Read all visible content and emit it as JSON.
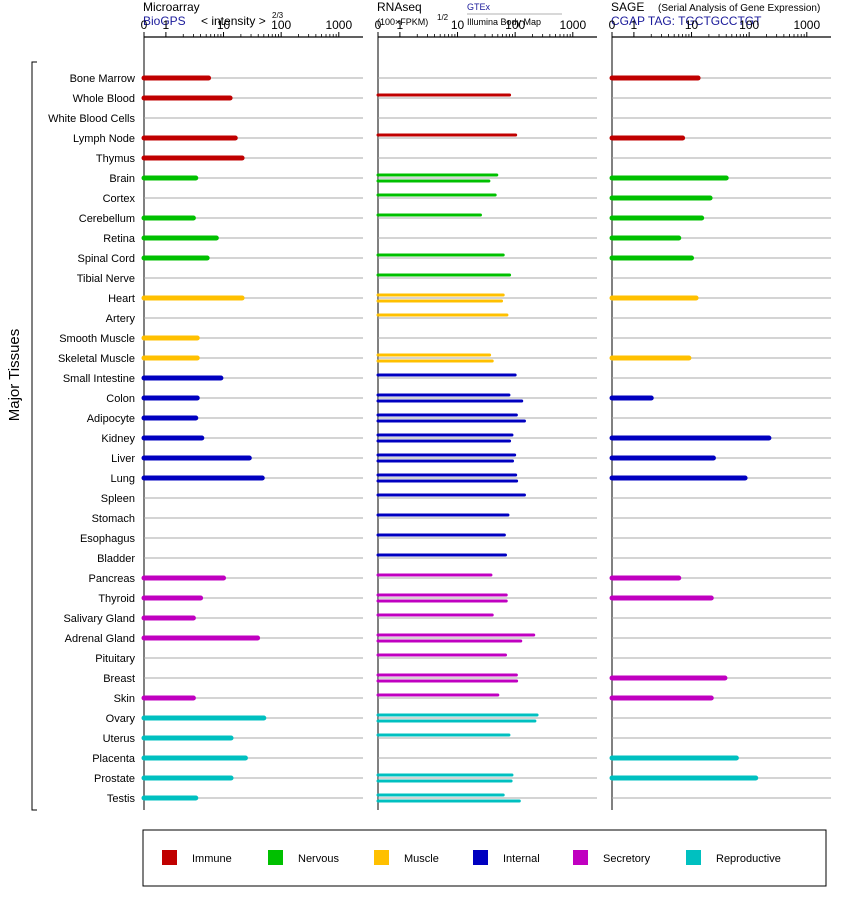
{
  "side_label": "Major Tissues",
  "panels": [
    {
      "id": "microarray",
      "title": "Microarray",
      "subtitle": "BioGPS",
      "subtitle2": "< intensity >",
      "subtitle2_exp": "2/3",
      "note": ""
    },
    {
      "id": "rnaseq",
      "title": "RNAseq",
      "subtitle": "(100×FPKM)",
      "subtitle_exp": "1/2",
      "note_top": "GTEx",
      "note_bottom": "Illumina Body Map"
    },
    {
      "id": "sage",
      "title": "SAGE",
      "title_note": "(Serial Analysis of Gene Expression)",
      "subtitle": "CGAP  TAG: TGCTGCCTGT"
    }
  ],
  "axis_ticks": [
    "0",
    "1",
    "10",
    "100",
    "1000"
  ],
  "legend": [
    {
      "label": "Immune",
      "color": "#c00000"
    },
    {
      "label": "Nervous",
      "color": "#00c000"
    },
    {
      "label": "Muscle",
      "color": "#ffc000"
    },
    {
      "label": "Internal",
      "color": "#0000c0"
    },
    {
      "label": "Secretory",
      "color": "#c000c0"
    },
    {
      "label": "Reproductive",
      "color": "#00c0c0"
    }
  ],
  "chart_data": {
    "type": "bar",
    "orientation": "horizontal",
    "x_scale": "log-like (0, 1, 10, 100, 1000)",
    "xlim": [
      0,
      1000
    ],
    "grid": true,
    "categories": [
      "Bone Marrow",
      "Whole Blood",
      "White Blood Cells",
      "Lymph Node",
      "Thymus",
      "Brain",
      "Cortex",
      "Cerebellum",
      "Retina",
      "Spinal Cord",
      "Tibial Nerve",
      "Heart",
      "Artery",
      "Smooth Muscle",
      "Skeletal Muscle",
      "Small Intestine",
      "Colon",
      "Adipocyte",
      "Kidney",
      "Liver",
      "Lung",
      "Spleen",
      "Stomach",
      "Esophagus",
      "Bladder",
      "Pancreas",
      "Thyroid",
      "Salivary Gland",
      "Adrenal Gland",
      "Pituitary",
      "Breast",
      "Skin",
      "Ovary",
      "Uterus",
      "Placenta",
      "Prostate",
      "Testis"
    ],
    "groups": [
      "Immune",
      "Immune",
      "Immune",
      "Immune",
      "Immune",
      "Nervous",
      "Nervous",
      "Nervous",
      "Nervous",
      "Nervous",
      "Nervous",
      "Muscle",
      "Muscle",
      "Muscle",
      "Muscle",
      "Internal",
      "Internal",
      "Internal",
      "Internal",
      "Internal",
      "Internal",
      "Internal",
      "Internal",
      "Internal",
      "Internal",
      "Secretory",
      "Secretory",
      "Secretory",
      "Secretory",
      "Secretory",
      "Secretory",
      "Secretory",
      "Reproductive",
      "Reproductive",
      "Reproductive",
      "Reproductive",
      "Reproductive"
    ],
    "microarray": [
      5.5,
      13,
      null,
      16,
      21,
      3.3,
      null,
      3.0,
      7.5,
      5.2,
      null,
      21,
      null,
      3.5,
      3.5,
      9,
      3.5,
      3.3,
      4.2,
      28,
      47,
      null,
      null,
      null,
      null,
      10,
      4.0,
      3.0,
      39,
      null,
      null,
      3.0,
      50,
      13.5,
      24,
      13.5,
      3.3
    ],
    "rnaseq_gtex": [
      null,
      80,
      null,
      102,
      null,
      48,
      45,
      25,
      null,
      62,
      80,
      62,
      72,
      null,
      36,
      100,
      78,
      105,
      88,
      98,
      102,
      145,
      75,
      65,
      68,
      38,
      70,
      40,
      210,
      68,
      105,
      50,
      240,
      78,
      null,
      88,
      62
    ],
    "rnaseq_ibm": [
      null,
      null,
      null,
      null,
      null,
      35,
      null,
      null,
      null,
      null,
      null,
      58,
      null,
      null,
      40,
      null,
      130,
      145,
      80,
      90,
      106,
      null,
      null,
      null,
      null,
      null,
      70,
      null,
      125,
      null,
      106,
      null,
      220,
      null,
      null,
      85,
      118
    ],
    "sage": [
      13,
      null,
      null,
      7,
      null,
      40,
      21,
      15,
      6,
      10,
      null,
      12,
      null,
      null,
      9,
      null,
      2.0,
      null,
      220,
      24,
      85,
      null,
      null,
      null,
      null,
      6,
      22,
      null,
      null,
      null,
      38,
      22,
      null,
      null,
      60,
      130,
      null
    ]
  }
}
